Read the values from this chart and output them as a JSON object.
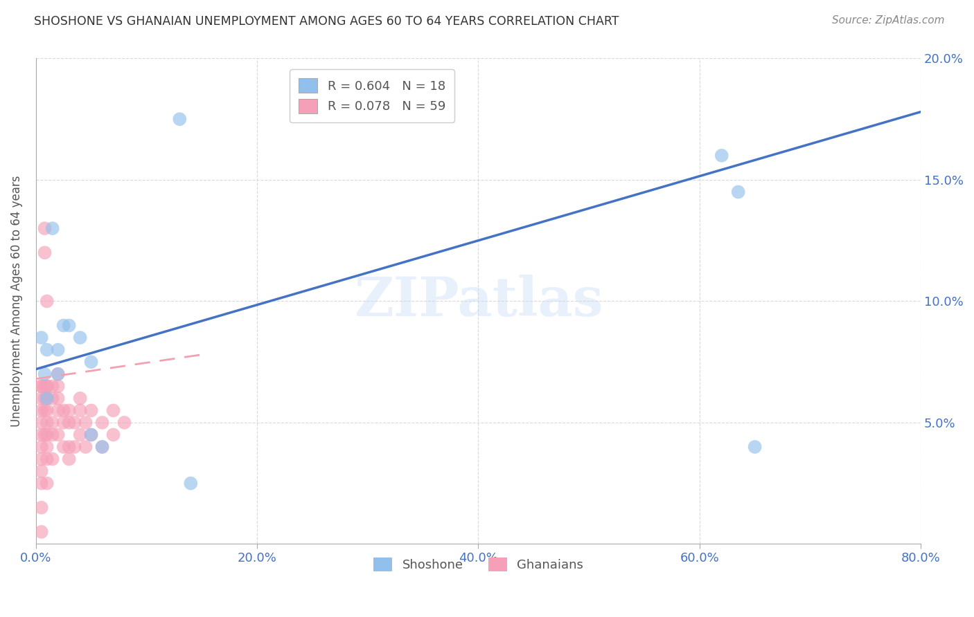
{
  "title": "SHOSHONE VS GHANAIAN UNEMPLOYMENT AMONG AGES 60 TO 64 YEARS CORRELATION CHART",
  "source": "Source: ZipAtlas.com",
  "ylabel": "Unemployment Among Ages 60 to 64 years",
  "xlim": [
    0,
    0.8
  ],
  "ylim": [
    0,
    0.2
  ],
  "xticks": [
    0.0,
    0.2,
    0.4,
    0.6,
    0.8
  ],
  "yticks": [
    0.0,
    0.05,
    0.1,
    0.15,
    0.2
  ],
  "xtick_labels": [
    "0.0%",
    "20.0%",
    "40.0%",
    "60.0%",
    "80.0%"
  ],
  "ytick_labels": [
    "",
    "5.0%",
    "10.0%",
    "15.0%",
    "20.0%"
  ],
  "shoshone_R": 0.604,
  "shoshone_N": 18,
  "ghanaian_R": 0.078,
  "ghanaian_N": 59,
  "shoshone_color": "#92C0EC",
  "ghanaian_color": "#F5A0B8",
  "shoshone_line_color": "#4472C4",
  "ghanaian_line_color": "#F4A0B0",
  "watermark": "ZIPatlas",
  "shoshone_x": [
    0.005,
    0.008,
    0.01,
    0.01,
    0.015,
    0.02,
    0.02,
    0.025,
    0.03,
    0.04,
    0.05,
    0.05,
    0.06,
    0.62,
    0.635,
    0.65,
    0.13,
    0.14
  ],
  "shoshone_y": [
    0.085,
    0.07,
    0.08,
    0.06,
    0.13,
    0.08,
    0.07,
    0.09,
    0.09,
    0.085,
    0.075,
    0.045,
    0.04,
    0.16,
    0.145,
    0.04,
    0.175,
    0.025
  ],
  "ghanaian_x": [
    0.005,
    0.005,
    0.005,
    0.005,
    0.005,
    0.005,
    0.005,
    0.005,
    0.005,
    0.005,
    0.005,
    0.005,
    0.008,
    0.008,
    0.008,
    0.008,
    0.008,
    0.008,
    0.01,
    0.01,
    0.01,
    0.01,
    0.01,
    0.01,
    0.01,
    0.01,
    0.01,
    0.01,
    0.015,
    0.015,
    0.015,
    0.015,
    0.015,
    0.02,
    0.02,
    0.02,
    0.02,
    0.02,
    0.025,
    0.025,
    0.025,
    0.03,
    0.03,
    0.03,
    0.03,
    0.035,
    0.035,
    0.04,
    0.04,
    0.04,
    0.045,
    0.045,
    0.05,
    0.05,
    0.06,
    0.06,
    0.07,
    0.07,
    0.08
  ],
  "ghanaian_y": [
    0.065,
    0.065,
    0.06,
    0.055,
    0.05,
    0.045,
    0.04,
    0.035,
    0.03,
    0.025,
    0.015,
    0.005,
    0.13,
    0.12,
    0.065,
    0.06,
    0.055,
    0.045,
    0.1,
    0.065,
    0.065,
    0.06,
    0.055,
    0.05,
    0.045,
    0.04,
    0.035,
    0.025,
    0.065,
    0.06,
    0.05,
    0.045,
    0.035,
    0.07,
    0.065,
    0.06,
    0.055,
    0.045,
    0.055,
    0.05,
    0.04,
    0.055,
    0.05,
    0.04,
    0.035,
    0.05,
    0.04,
    0.06,
    0.055,
    0.045,
    0.05,
    0.04,
    0.055,
    0.045,
    0.05,
    0.04,
    0.055,
    0.045,
    0.05
  ],
  "shoshone_line_x0": 0.0,
  "shoshone_line_x1": 0.8,
  "shoshone_line_y0": 0.072,
  "shoshone_line_y1": 0.178,
  "ghanaian_line_x0": 0.0,
  "ghanaian_line_x1": 0.15,
  "ghanaian_line_y0": 0.068,
  "ghanaian_line_y1": 0.078
}
